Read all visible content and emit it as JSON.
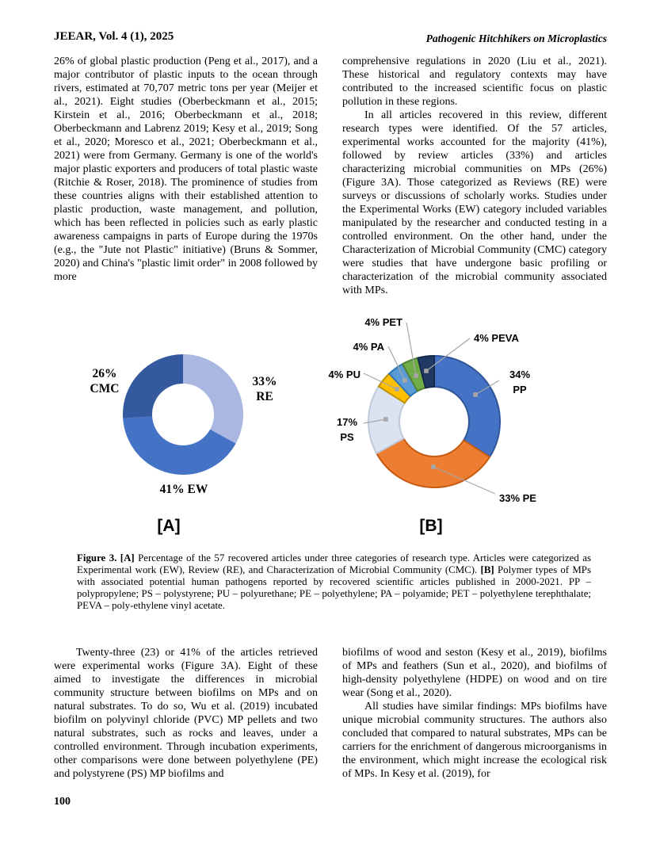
{
  "header": {
    "journal": "JEEAR, Vol. 4 (1), 2025",
    "running_title": "Pathogenic Hitchhikers on Microplastics"
  },
  "body": {
    "col1_para1": "26% of global plastic production (Peng et al., 2017), and a major contributor of plastic inputs to the ocean through rivers, estimated at 70,707 metric tons per year (Meijer et al., 2021). Eight studies (Oberbeckmann et al., 2015; Kirstein et al., 2016; Oberbeckmann et al., 2018; Oberbeckmann and Labrenz 2019; Kesy et al., 2019; Song et al., 2020; Moresco et al., 2021; Oberbeckmann et al., 2021) were from Germany. Germany is one of the world's major plastic exporters and producers of total plastic waste (Ritchie & Roser, 2018). The prominence of studies from these countries aligns with their established attention to plastic production, waste management, and pollution, which has been reflected in policies such as early plastic awareness campaigns in parts of Europe during the 1970s (e.g., the \"Jute not Plastic\" initiative) (Bruns & Sommer, 2020) and China's \"plastic limit order\" in 2008 followed by more",
    "col2_para1": "comprehensive regulations in 2020 (Liu et al., 2021). These historical and regulatory contexts may have contributed to the increased scientific focus on plastic pollution in these regions.",
    "col2_para2": "In all articles recovered in this review, different research types were identified. Of the 57 articles, experimental works accounted for the majority (41%), followed by review articles (33%) and articles characterizing microbial communities on MPs (26%) (Figure 3A). Those categorized as Reviews (RE) were surveys or discussions of scholarly works. Studies under the Experimental Works (EW) category included variables manipulated by the researcher and conducted testing in a controlled environment. On the other hand, under the Characterization of Microbial Community (CMC) category were studies that have undergone basic profiling or characterization of the microbial community associated with MPs.",
    "col1b_para1": "Twenty-three (23) or 41% of the articles retrieved were experimental works (Figure 3A). Eight of these aimed to investigate the differences in microbial community structure between biofilms on MPs and on natural substrates. To do so, Wu et al. (2019) incubated biofilm on polyvinyl chloride (PVC) MP pellets and two natural substrates, such as rocks and leaves, under a controlled environment. Through incubation experiments, other comparisons were done between polyethylene (PE) and polystyrene (PS) MP biofilms and",
    "col2b_para1": "biofilms of wood and seston (Kesy et al., 2019), biofilms of MPs and feathers (Sun et al., 2020), and biofilms of high-density polyethylene (HDPE) on wood and on tire wear (Song et al., 2020).",
    "col2b_para2": "All studies have similar findings: MPs biofilms have unique microbial community structures. The authors also concluded that compared to natural substrates, MPs can be carriers for the enrichment of dangerous microorganisms in the environment, which might increase the ecological risk of MPs. In Kesy et al. (2019), for"
  },
  "figure": {
    "panel_a_label": "[A]",
    "panel_b_label": "[B]",
    "caption": {
      "label": "Figure 3.",
      "a_marker": "[A]",
      "a_text": "Percentage of the 57 recovered articles under three categories of research type. Articles were categorized as Experimental work (EW), Review (RE), and Characterization of Microbial Community (CMC).",
      "b_marker": "[B]",
      "b_text": "Polymer types of MPs with associated potential human pathogens reported by recovered scientific articles published in 2000-2021. PP – polypropylene; PS – polystyrene; PU – polyurethane; PE – polyethylene; PA – polyamide; PET – polyethylene terephthalate; PEVA – poly-ethylene vinyl acetate."
    }
  },
  "chart_data": [
    {
      "type": "pie",
      "subtype": "donut",
      "panel": "A",
      "title": "",
      "description": "Research type distribution of 57 recovered articles",
      "order": "clockwise-from-top",
      "legend": "none",
      "slices": [
        {
          "label": "RE",
          "value": 33,
          "color": "#a9b7e1",
          "display": "33% RE"
        },
        {
          "label": "EW",
          "value": 41,
          "color": "#4472c4",
          "display": "41% EW"
        },
        {
          "label": "CMC",
          "value": 26,
          "color": "#35599f",
          "display": "26% CMC"
        }
      ]
    },
    {
      "type": "pie",
      "subtype": "donut",
      "panel": "B",
      "title": "",
      "description": "Polymer types of MPs with associated potential human pathogens",
      "order": "clockwise-from-top",
      "legend": "none",
      "leader_line_color": "#a6a6a6",
      "slices": [
        {
          "label": "PP",
          "value": 34,
          "color": "#4472c4",
          "border": "#2f5597",
          "display": "34% PP"
        },
        {
          "label": "PE",
          "value": 33,
          "color": "#ed7d31",
          "border": "#c55a11",
          "display": "33% PE"
        },
        {
          "label": "PS",
          "value": 17,
          "color": "#dce3f0",
          "border": "#bfc9d9",
          "display": "17% PS"
        },
        {
          "label": "PU",
          "value": 4,
          "color": "#ffc000",
          "border": "#bf9000",
          "display": "4% PU"
        },
        {
          "label": "PA",
          "value": 4,
          "color": "#5b9bd5",
          "border": "#2e75b6",
          "display": "4% PA"
        },
        {
          "label": "PET",
          "value": 4,
          "color": "#70ad47",
          "border": "#548235",
          "display": "4% PET"
        },
        {
          "label": "PEVA",
          "value": 4,
          "color": "#203864",
          "border": "#16294a",
          "display": "4% PEVA"
        }
      ]
    }
  ],
  "footer": {
    "page_number": "100"
  }
}
